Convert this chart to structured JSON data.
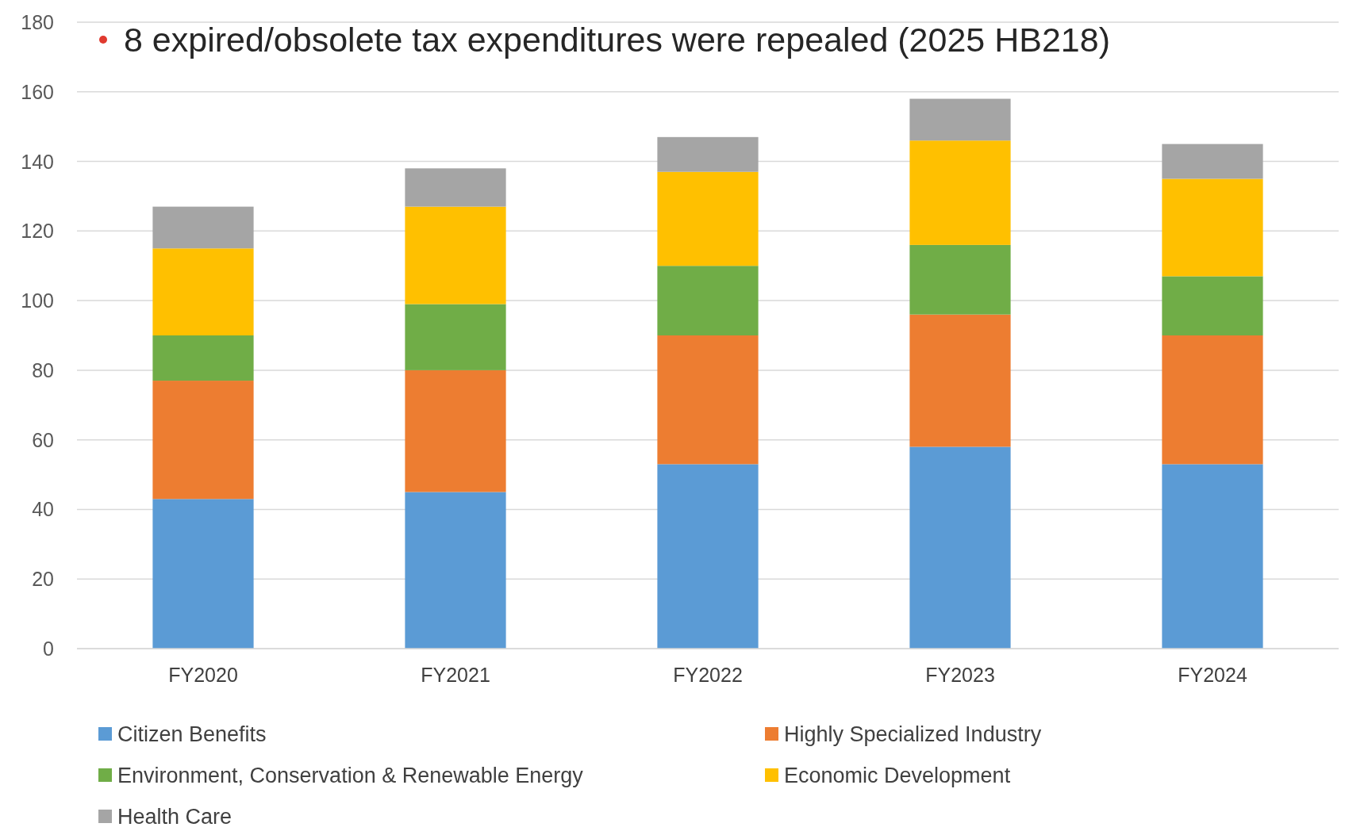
{
  "chart_data": {
    "type": "bar",
    "title": "8 expired/obsolete tax expenditures were repealed (2025 HB218)",
    "categories": [
      "FY2020",
      "FY2021",
      "FY2022",
      "FY2023",
      "FY2024"
    ],
    "stacked": true,
    "series": [
      {
        "name": "Citizen Benefits",
        "color": "#5b9bd5",
        "values": [
          43,
          45,
          53,
          58,
          53
        ]
      },
      {
        "name": "Highly Specialized Industry",
        "color": "#ed7d31",
        "values": [
          34,
          35,
          37,
          38,
          37
        ]
      },
      {
        "name": "Environment, Conservation & Renewable Energy",
        "color": "#70ad47",
        "values": [
          13,
          19,
          20,
          20,
          17
        ]
      },
      {
        "name": "Economic Development",
        "color": "#ffc000",
        "values": [
          25,
          28,
          27,
          30,
          28
        ]
      },
      {
        "name": "Health Care",
        "color": "#a5a5a5",
        "values": [
          12,
          11,
          10,
          12,
          10
        ]
      }
    ],
    "ylim": [
      0,
      180
    ],
    "yticks": [
      0,
      20,
      40,
      60,
      80,
      100,
      120,
      140,
      160,
      180
    ],
    "grid": "y",
    "legend": "bottom"
  }
}
